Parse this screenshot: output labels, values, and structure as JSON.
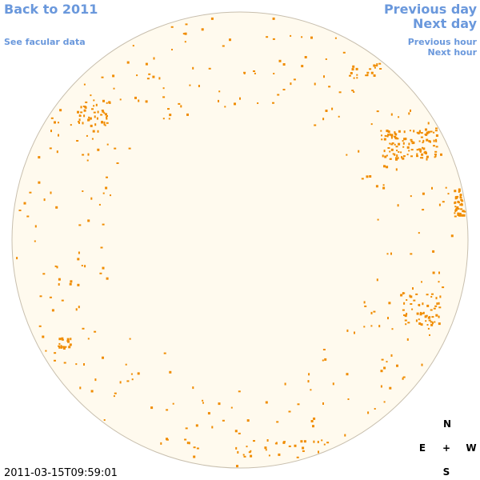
{
  "nav": {
    "back": "Back to 2011",
    "facular": "See facular data",
    "previous_day": "Previous day",
    "next_day": "Next day",
    "previous_hour": "Previous hour",
    "next_hour": "Next hour"
  },
  "timestamp": "2011-03-15T09:59:01",
  "compass": {
    "north": "N",
    "east": "E",
    "center": "+",
    "west": "W",
    "south": "S"
  }
}
